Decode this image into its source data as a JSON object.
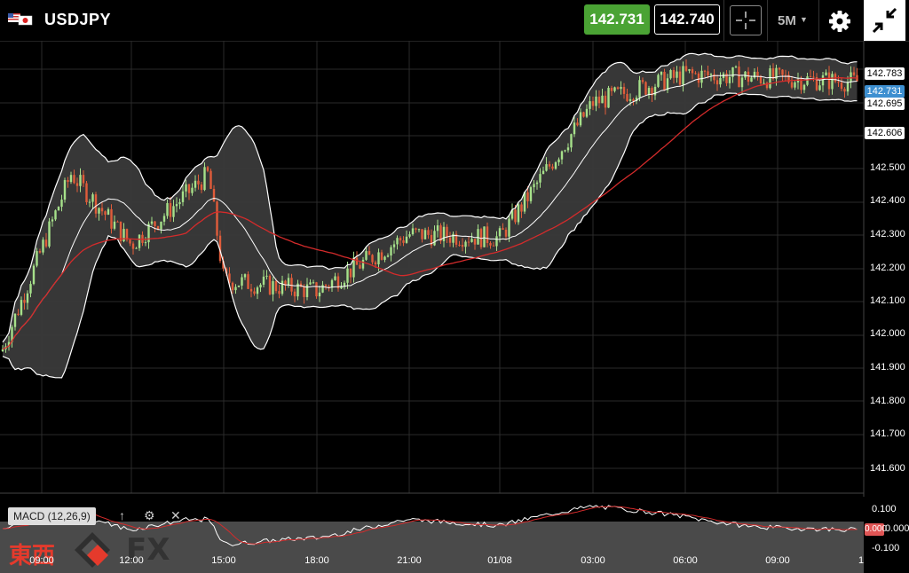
{
  "header": {
    "symbol": "USDJPY",
    "bid": "142.731",
    "ask": "142.740",
    "timeframe": "5M",
    "colors": {
      "bid_bg": "#4aa334",
      "up_candle": "#a6e08a",
      "down_candle": "#e05c3a",
      "ma_line": "#d42b2b"
    }
  },
  "price_axis": {
    "ticks": [
      "142.500",
      "142.400",
      "142.300",
      "142.200",
      "142.100",
      "142.000",
      "141.900",
      "141.800",
      "141.700",
      "141.600"
    ],
    "labels": {
      "upper_band": "142.783",
      "current": "142.731",
      "middle": "142.695",
      "lower_band": "142.606"
    }
  },
  "time_axis": {
    "ticks": [
      "09:00",
      "12:00",
      "15:00",
      "18:00",
      "21:00",
      "01/08",
      "03:00",
      "06:00",
      "09:00",
      "1"
    ]
  },
  "macd": {
    "label": "MACD (12,26,9)",
    "ticks": [
      "0.100",
      "0.000",
      "-0.100"
    ],
    "current": "0.000"
  },
  "watermark": {
    "kanji": "東西",
    "fx": "FX"
  },
  "chart_data": {
    "type": "candlestick",
    "symbol": "USDJPY",
    "timeframe": "5M",
    "overlays": [
      "Bollinger Bands",
      "Moving Average"
    ],
    "approx_close_path": [
      {
        "time": "09:00",
        "price": 141.95
      },
      {
        "time": "10:00",
        "price": 142.45
      },
      {
        "time": "12:00",
        "price": 142.25
      },
      {
        "time": "14:30",
        "price": 142.45
      },
      {
        "time": "15:00",
        "price": 142.15
      },
      {
        "time": "18:00",
        "price": 142.12
      },
      {
        "time": "21:00",
        "price": 142.28
      },
      {
        "time": "01/08",
        "price": 142.27
      },
      {
        "time": "03:00",
        "price": 142.65
      },
      {
        "time": "06:00",
        "price": 142.73
      },
      {
        "time": "09:00",
        "price": 142.71
      }
    ],
    "ylim": [
      141.55,
      142.8
    ]
  }
}
